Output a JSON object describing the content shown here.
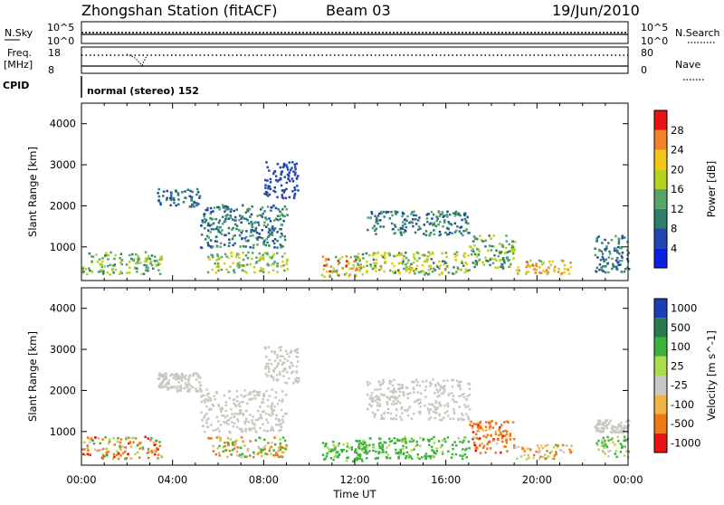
{
  "header": {
    "station": "Zhongshan Station (fitACF)",
    "beam": "Beam 03",
    "date": "19/Jun/2010"
  },
  "strip_labels": {
    "nsky": "N.Sky",
    "nsky_top": "10^5",
    "nsky_bottom": "10^0",
    "nsearch": "N.Search",
    "nsearch_top": "10^5",
    "nsearch_bottom": "10^0",
    "freq_line1": "Freq.",
    "freq_line2": "[MHz]",
    "freq_top": "18",
    "freq_bottom": "8",
    "nave": "Nave",
    "nave_top": "80",
    "nave_bottom": "0",
    "cpid": "CPID",
    "cpid_text": "normal (stereo) 152"
  },
  "colors": {
    "power": [
      "#0a1ee6",
      "#2546b0",
      "#2c7d6a",
      "#56a56a",
      "#b4d21e",
      "#f0c814",
      "#f08228",
      "#e61414"
    ],
    "velocity": [
      "#e61414",
      "#f07814",
      "#f0b446",
      "#c8c8c8",
      "#aadc50",
      "#3cb43c",
      "#2a7a50",
      "#1e3cb4"
    ],
    "ground_scatter": "#c8c8c0"
  },
  "chart_data": [
    {
      "type": "heatmap",
      "name": "power",
      "xlabel": "",
      "ylabel": "Slant Range [km]",
      "xlim": [
        0,
        24
      ],
      "ylim": [
        180,
        4500
      ],
      "x_ticks": [
        "00:00",
        "04:00",
        "08:00",
        "12:00",
        "16:00",
        "20:00",
        "00:00"
      ],
      "y_ticks": [
        1000,
        2000,
        3000,
        4000
      ],
      "colorbar": {
        "label": "Power [dB]",
        "ticks": [
          "4",
          "8",
          "12",
          "16",
          "20",
          "24",
          "28"
        ],
        "range": [
          0,
          32
        ]
      },
      "regions": [
        {
          "t": [
            0.0,
            3.5
          ],
          "r": [
            350,
            900
          ],
          "v": [
            10,
            20
          ]
        },
        {
          "t": [
            3.3,
            5.2
          ],
          "r": [
            2000,
            2450
          ],
          "v": [
            6,
            11
          ]
        },
        {
          "t": [
            5.2,
            9.0
          ],
          "r": [
            1000,
            2050
          ],
          "v": [
            6,
            14
          ]
        },
        {
          "t": [
            5.5,
            9.0
          ],
          "r": [
            400,
            900
          ],
          "v": [
            12,
            22
          ]
        },
        {
          "t": [
            8.0,
            9.5
          ],
          "r": [
            2200,
            3100
          ],
          "v": [
            4,
            8
          ]
        },
        {
          "t": [
            10.5,
            12.5
          ],
          "r": [
            300,
            800
          ],
          "v": [
            14,
            30
          ]
        },
        {
          "t": [
            12.5,
            17.0
          ],
          "r": [
            1300,
            1900
          ],
          "v": [
            6,
            14
          ]
        },
        {
          "t": [
            12.0,
            17.0
          ],
          "r": [
            350,
            900
          ],
          "v": [
            10,
            24
          ]
        },
        {
          "t": [
            17.0,
            19.0
          ],
          "r": [
            500,
            1300
          ],
          "v": [
            8,
            20
          ]
        },
        {
          "t": [
            19.0,
            21.5
          ],
          "r": [
            350,
            700
          ],
          "v": [
            14,
            28
          ]
        },
        {
          "t": [
            22.5,
            24.0
          ],
          "r": [
            400,
            1300
          ],
          "v": [
            6,
            14
          ]
        }
      ]
    },
    {
      "type": "heatmap",
      "name": "velocity",
      "xlabel": "Time UT",
      "ylabel": "Slant Range [km]",
      "xlim": [
        0,
        24
      ],
      "ylim": [
        180,
        4500
      ],
      "x_ticks": [
        "00:00",
        "04:00",
        "08:00",
        "12:00",
        "16:00",
        "20:00",
        "00:00"
      ],
      "y_ticks": [
        1000,
        2000,
        3000,
        4000
      ],
      "colorbar": {
        "label": "Velocity [m s^-1]",
        "ticks": [
          "-1000",
          "-500",
          "-100",
          "-25",
          "25",
          "100",
          "500",
          "1000"
        ]
      },
      "ground_scatter_regions": [
        {
          "t": [
            3.3,
            5.2
          ],
          "r": [
            2000,
            2450
          ]
        },
        {
          "t": [
            5.2,
            9.0
          ],
          "r": [
            1000,
            2050
          ]
        },
        {
          "t": [
            8.0,
            9.5
          ],
          "r": [
            2200,
            3100
          ]
        },
        {
          "t": [
            12.5,
            17.0
          ],
          "r": [
            1300,
            2300
          ]
        },
        {
          "t": [
            22.5,
            24.0
          ],
          "r": [
            1000,
            1300
          ]
        }
      ],
      "regions": [
        {
          "t": [
            0.0,
            3.5
          ],
          "r": [
            350,
            900
          ],
          "v": [
            -600,
            200
          ]
        },
        {
          "t": [
            5.5,
            9.0
          ],
          "r": [
            400,
            900
          ],
          "v": [
            -200,
            200
          ]
        },
        {
          "t": [
            10.5,
            12.5
          ],
          "r": [
            300,
            800
          ],
          "v": [
            50,
            300
          ]
        },
        {
          "t": [
            12.0,
            17.0
          ],
          "r": [
            350,
            900
          ],
          "v": [
            50,
            300
          ]
        },
        {
          "t": [
            17.0,
            19.0
          ],
          "r": [
            500,
            1300
          ],
          "v": [
            -600,
            0
          ]
        },
        {
          "t": [
            19.0,
            21.5
          ],
          "r": [
            350,
            700
          ],
          "v": [
            -300,
            100
          ]
        },
        {
          "t": [
            22.5,
            24.0
          ],
          "r": [
            400,
            900
          ],
          "v": [
            -100,
            300
          ]
        }
      ]
    }
  ]
}
